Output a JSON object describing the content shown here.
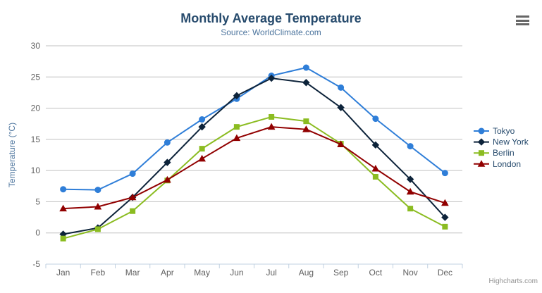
{
  "chart_data": {
    "type": "line",
    "title": "Monthly Average Temperature",
    "subtitle": "Source: WorldClimate.com",
    "categories": [
      "Jan",
      "Feb",
      "Mar",
      "Apr",
      "May",
      "Jun",
      "Jul",
      "Aug",
      "Sep",
      "Oct",
      "Nov",
      "Dec"
    ],
    "xlabel": "",
    "ylabel": "Temperature (°C)",
    "ylim": [
      -5,
      30
    ],
    "ytick_interval": 5,
    "grid": true,
    "legend_position": "right-middle-vertical",
    "series": [
      {
        "name": "Tokyo",
        "color": "#2f7ed8",
        "marker": "circle",
        "values": [
          7.0,
          6.9,
          9.5,
          14.5,
          18.2,
          21.5,
          25.2,
          26.5,
          23.3,
          18.3,
          13.9,
          9.6
        ]
      },
      {
        "name": "New York",
        "color": "#0d233a",
        "marker": "diamond",
        "values": [
          -0.2,
          0.8,
          5.7,
          11.3,
          17.0,
          22.0,
          24.8,
          24.1,
          20.1,
          14.1,
          8.6,
          2.5
        ]
      },
      {
        "name": "Berlin",
        "color": "#8bbc21",
        "marker": "square",
        "values": [
          -0.9,
          0.6,
          3.5,
          8.4,
          13.5,
          17.0,
          18.6,
          17.9,
          14.3,
          9.0,
          3.9,
          1.0
        ]
      },
      {
        "name": "London",
        "color": "#910000",
        "marker": "triangle",
        "values": [
          3.9,
          4.2,
          5.7,
          8.5,
          11.9,
          15.2,
          17.0,
          16.6,
          14.2,
          10.3,
          6.6,
          4.8
        ]
      }
    ],
    "colors": {
      "gridline": "#c0c0c0",
      "axis_line": "#c0d0e0",
      "title": "#274b6d",
      "subtitle": "#4d759e",
      "axis_label": "#606060",
      "y_axis_title": "#4d759e",
      "legend_text": "#274b6d",
      "credits": "#909090",
      "menu_icon": "#666666"
    },
    "credits": "Highcharts.com"
  }
}
